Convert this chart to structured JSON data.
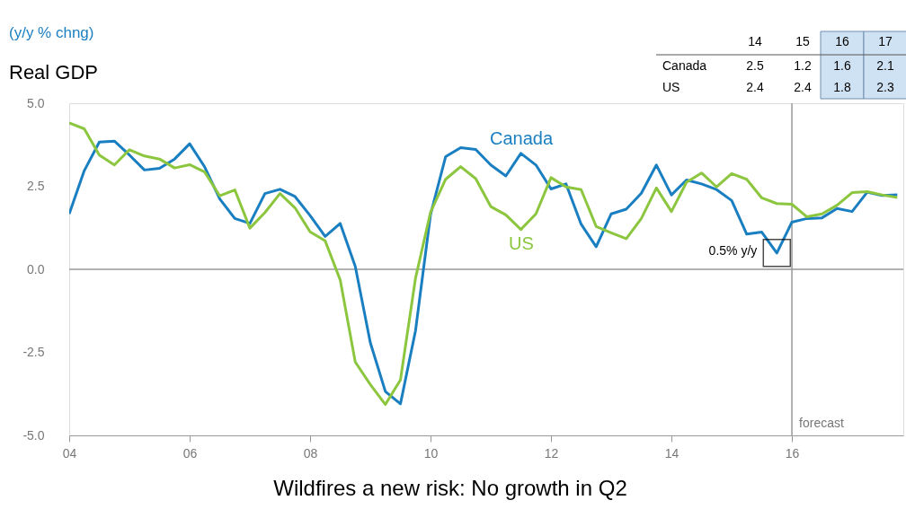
{
  "chart_data": [
    {
      "type": "line",
      "title": "Real GDP",
      "ylabel": "(y/y % chng)",
      "x": [
        2004,
        2004.25,
        2004.5,
        2004.75,
        2005,
        2005.25,
        2005.5,
        2005.75,
        2006,
        2006.25,
        2006.5,
        2006.75,
        2007,
        2007.25,
        2007.5,
        2007.75,
        2008,
        2008.25,
        2008.5,
        2008.75,
        2009,
        2009.25,
        2009.5,
        2009.75,
        2010,
        2010.25,
        2010.5,
        2010.75,
        2011,
        2011.25,
        2011.5,
        2011.75,
        2012,
        2012.25,
        2012.5,
        2012.75,
        2013,
        2013.25,
        2013.5,
        2013.75,
        2014,
        2014.25,
        2014.5,
        2014.75,
        2015,
        2015.25,
        2015.5,
        2015.75,
        2016,
        2016.25,
        2016.5,
        2016.75,
        2017,
        2017.25,
        2017.5,
        2017.75
      ],
      "series": [
        {
          "name": "Canada",
          "color": "#1a7fc1",
          "values": [
            1.67,
            2.97,
            3.83,
            3.86,
            3.44,
            2.99,
            3.04,
            3.32,
            3.78,
            3.08,
            2.12,
            1.53,
            1.38,
            2.28,
            2.41,
            2.19,
            1.62,
            0.99,
            1.38,
            0.09,
            -2.21,
            -3.68,
            -4.05,
            -1.85,
            1.65,
            3.39,
            3.66,
            3.61,
            3.14,
            2.81,
            3.49,
            3.14,
            2.42,
            2.57,
            1.36,
            0.68,
            1.67,
            1.81,
            2.29,
            3.14,
            2.24,
            2.69,
            2.57,
            2.4,
            2.07,
            1.06,
            1.12,
            0.49,
            1.42,
            1.53,
            1.55,
            1.83,
            1.74,
            2.32,
            2.22,
            2.24
          ]
        },
        {
          "name": "US",
          "color": "#8cc63f",
          "values": [
            4.41,
            4.23,
            3.44,
            3.14,
            3.6,
            3.41,
            3.32,
            3.05,
            3.15,
            2.93,
            2.21,
            2.39,
            1.24,
            1.71,
            2.28,
            1.85,
            1.13,
            0.86,
            -0.32,
            -2.79,
            -3.47,
            -4.07,
            -3.33,
            -0.27,
            1.72,
            2.71,
            3.09,
            2.73,
            1.89,
            1.64,
            1.2,
            1.67,
            2.76,
            2.48,
            2.4,
            1.29,
            1.1,
            0.92,
            1.53,
            2.45,
            1.74,
            2.62,
            2.9,
            2.48,
            2.88,
            2.71,
            2.15,
            1.98,
            1.96,
            1.58,
            1.67,
            1.93,
            2.31,
            2.34,
            2.24,
            2.16
          ]
        }
      ],
      "xlim": [
        2004,
        2017.85
      ],
      "xticks": [
        {
          "value": 2004,
          "label": "04"
        },
        {
          "value": 2006,
          "label": "06"
        },
        {
          "value": 2008,
          "label": "08"
        },
        {
          "value": 2010,
          "label": "10"
        },
        {
          "value": 2012,
          "label": "12"
        },
        {
          "value": 2014,
          "label": "14"
        },
        {
          "value": 2016,
          "label": "16"
        }
      ],
      "ylim": [
        -5,
        5
      ],
      "yticks": [
        {
          "value": -5,
          "label": "-5.0"
        },
        {
          "value": -2.5,
          "label": "-2.5"
        },
        {
          "value": 0,
          "label": "0.0"
        },
        {
          "value": 2.5,
          "label": "2.5"
        },
        {
          "value": 5,
          "label": "5.0"
        }
      ],
      "ref_lines": [
        {
          "axis": "y",
          "value": 0,
          "color": "#999999"
        },
        {
          "axis": "x",
          "value": 2016,
          "label": "forecast",
          "color": "#999999"
        }
      ],
      "annotations": [
        {
          "text": "0.5% y/y",
          "x": 2015.75,
          "y": 0.49
        },
        "Wildfires a new risk: No growth in Q2"
      ]
    },
    {
      "type": "heatmap",
      "categories": [
        "14",
        "15",
        "16",
        "17"
      ],
      "y_categories": [
        "Canada",
        "US"
      ],
      "cells": [
        [
          2.5,
          1.2,
          1.6,
          2.1
        ],
        [
          2.4,
          2.4,
          1.8,
          2.3
        ]
      ],
      "colors": [
        null,
        null,
        "#cfe2f3",
        "#cfe2f3"
      ],
      "data_labels": true
    }
  ]
}
